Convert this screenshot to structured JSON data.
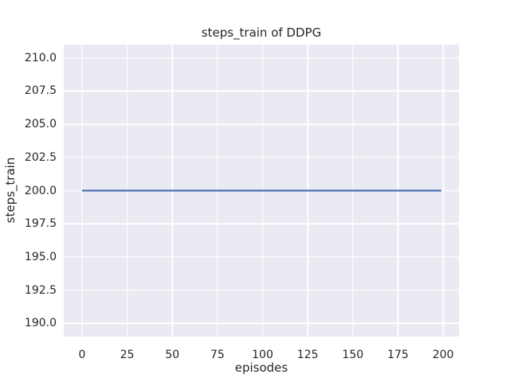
{
  "chart_data": {
    "type": "line",
    "title": "steps_train of DDPG",
    "xlabel": "episodes",
    "ylabel": "steps_train",
    "xlim": [
      -10.15,
      208.8
    ],
    "ylim": [
      189.0,
      211.0
    ],
    "xticks": [
      0,
      25,
      50,
      75,
      100,
      125,
      150,
      175,
      200
    ],
    "xtick_labels": [
      "0",
      "25",
      "50",
      "75",
      "100",
      "125",
      "150",
      "175",
      "200"
    ],
    "yticks": [
      190.0,
      192.5,
      195.0,
      197.5,
      200.0,
      202.5,
      205.0,
      207.5,
      210.0
    ],
    "ytick_labels": [
      "190.0",
      "192.5",
      "195.0",
      "197.5",
      "200.0",
      "202.5",
      "205.0",
      "207.5",
      "210.0"
    ],
    "grid": true,
    "legend": "none",
    "plot_bg_color": "#eaeaf2",
    "grid_color": "#ffffff",
    "text_color": "#262626",
    "series": [
      {
        "name": "steps_train",
        "color": "#4c72b0",
        "x": [
          0,
          199
        ],
        "y": [
          200,
          200
        ]
      }
    ]
  }
}
